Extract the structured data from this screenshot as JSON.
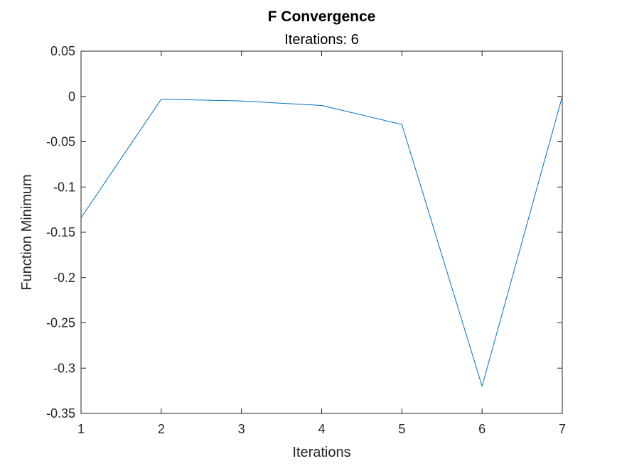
{
  "chart_data": {
    "type": "line",
    "title": "F Convergence",
    "subtitle": "Iterations: 6",
    "xlabel": "Iterations",
    "ylabel": "Function Minimum",
    "xlim": [
      1,
      7
    ],
    "ylim": [
      -0.35,
      0.05
    ],
    "x_ticks": [
      "1",
      "2",
      "3",
      "4",
      "5",
      "6",
      "7"
    ],
    "y_ticks": [
      "0.05",
      "0",
      "-0.05",
      "-0.1",
      "-0.15",
      "-0.2",
      "-0.25",
      "-0.3",
      "-0.35"
    ],
    "grid": false,
    "series": [
      {
        "x": [
          1,
          2,
          3,
          4,
          5,
          6,
          7
        ],
        "y": [
          -0.134,
          -0.003,
          -0.005,
          -0.01,
          -0.031,
          -0.32,
          0.0
        ],
        "color": "#0072BD"
      }
    ]
  }
}
